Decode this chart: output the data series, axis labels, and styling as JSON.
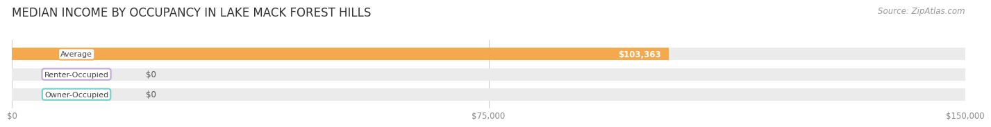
{
  "title": "MEDIAN INCOME BY OCCUPANCY IN LAKE MACK FOREST HILLS",
  "source": "Source: ZipAtlas.com",
  "categories": [
    "Owner-Occupied",
    "Renter-Occupied",
    "Average"
  ],
  "values": [
    0,
    0,
    103363
  ],
  "bar_colors": [
    "#6ecfcb",
    "#c4a8d4",
    "#f5a94e"
  ],
  "bar_labels": [
    "$0",
    "$0",
    "$103,363"
  ],
  "xlim": [
    0,
    150000
  ],
  "xticks": [
    0,
    75000,
    150000
  ],
  "xtick_labels": [
    "$0",
    "$75,000",
    "$150,000"
  ],
  "background_color": "#ffffff",
  "bar_bg_color": "#ebebeb",
  "gridline_color": "#d0d0d0",
  "title_fontsize": 12,
  "source_fontsize": 8.5,
  "bar_height": 0.62,
  "bar_gap": 0.38
}
